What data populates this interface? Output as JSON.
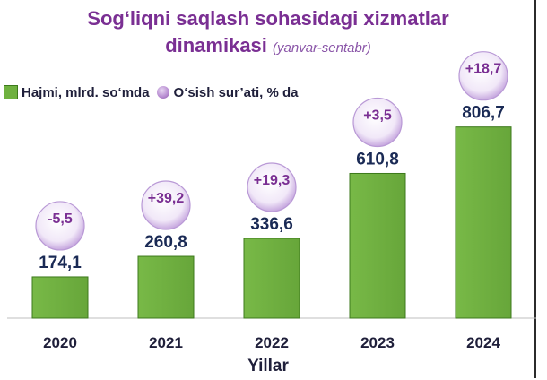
{
  "chart_data": {
    "type": "bar",
    "title_line1": "Sog‘liqni saqlash sohasidagi xizmatlar",
    "title_line2": "dinamikasi",
    "subtitle": "(yanvar-sentabr)",
    "categories": [
      "2020",
      "2021",
      "2022",
      "2023",
      "2024"
    ],
    "series": [
      {
        "name": "Hajmi, mlrd. so‘mda",
        "values": [
          174.1,
          260.8,
          336.6,
          610.8,
          806.7
        ],
        "labels": [
          "174,1",
          "260,8",
          "336,6",
          "610,8",
          "806,7"
        ]
      },
      {
        "name": "O‘sish sur’ati, % da",
        "values": [
          -5.5,
          39.2,
          19.3,
          3.5,
          18.7
        ],
        "labels": [
          "-5,5",
          "+39,2",
          "+19,3",
          "+3,5",
          "+18,7"
        ]
      }
    ],
    "xlabel": "Yillar",
    "ylim": [
      0,
      900
    ],
    "grid": false,
    "legend": "top-left",
    "colors": {
      "bar": "#6fb13f",
      "bar_edge": "#3d7a1c",
      "bubble_text": "#7a2f93",
      "value_text": "#1a2a55"
    }
  }
}
